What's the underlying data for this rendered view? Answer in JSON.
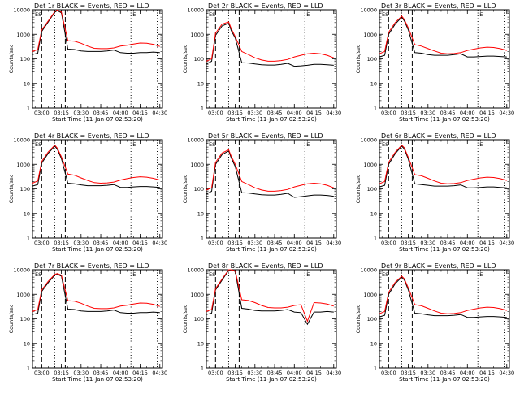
{
  "chart_data": [
    {
      "type": "line",
      "title": "Det 1r BLACK = Events, RED = LLD",
      "xlabel": "Start Time (11-Jan-07 02:53:20)",
      "ylabel": "Counts/sec",
      "yscale": "log",
      "ylim": [
        1,
        10000
      ],
      "x_ticks": [
        "03:00",
        "03:15",
        "03:30",
        "03:45",
        "04:00",
        "04:15",
        "04:30"
      ],
      "y_ticks": [
        "1",
        "10",
        "100",
        "1000",
        "10000"
      ],
      "grid": false,
      "corner_labels": [
        "ES",
        "E"
      ],
      "colors": {
        "events": "#000000",
        "lld": "#ff0000"
      },
      "x": [
        "02:53",
        "02:55",
        "02:57",
        "03:00",
        "03:05",
        "03:10",
        "03:12",
        "03:15",
        "03:20",
        "03:25",
        "03:30",
        "03:35",
        "03:40",
        "03:45",
        "03:50",
        "03:55",
        "04:00",
        "04:05",
        "04:10",
        "04:15",
        "04:20",
        "04:25",
        "04:30"
      ],
      "series": [
        {
          "values": [
            150,
            160,
            170,
            1300,
            3200,
            8000,
            9200,
            7500,
            250,
            240,
            210,
            200,
            200,
            200,
            210,
            230,
            180,
            170,
            170,
            180,
            180,
            190,
            180
          ]
        },
        {
          "values": [
            200,
            220,
            240,
            1500,
            3500,
            8500,
            9800,
            8000,
            550,
            520,
            430,
            330,
            270,
            260,
            260,
            280,
            330,
            360,
            400,
            440,
            430,
            390,
            320
          ]
        }
      ]
    },
    {
      "type": "line",
      "title": "Det 2r BLACK = Events, RED = LLD",
      "xlabel": "Start Time (11-Jan-07 02:53:20)",
      "ylabel": "Counts/sec",
      "yscale": "log",
      "ylim": [
        1,
        10000
      ],
      "x_ticks": [
        "03:00",
        "03:15",
        "03:30",
        "03:45",
        "04:00",
        "04:15",
        "04:30"
      ],
      "y_ticks": [
        "1",
        "10",
        "100",
        "1000",
        "10000"
      ],
      "grid": false,
      "corner_labels": [
        "ES",
        "E"
      ],
      "colors": {
        "events": "#000000",
        "lld": "#ff0000"
      },
      "x": [
        "02:53",
        "02:55",
        "02:57",
        "03:00",
        "03:05",
        "03:10",
        "03:12",
        "03:15",
        "03:20",
        "03:25",
        "03:30",
        "03:35",
        "03:40",
        "03:45",
        "03:50",
        "03:55",
        "04:00",
        "04:05",
        "04:10",
        "04:15",
        "04:20",
        "04:25",
        "04:30"
      ],
      "series": [
        {
          "values": [
            60,
            70,
            80,
            900,
            2200,
            2800,
            1400,
            700,
            70,
            68,
            62,
            58,
            56,
            56,
            60,
            66,
            50,
            52,
            55,
            60,
            60,
            58,
            55
          ]
        },
        {
          "values": [
            80,
            90,
            100,
            1100,
            2600,
            3200,
            1700,
            800,
            200,
            150,
            110,
            90,
            80,
            80,
            85,
            95,
            120,
            140,
            160,
            170,
            160,
            140,
            110
          ]
        }
      ]
    },
    {
      "type": "line",
      "title": "Det 3r BLACK = Events, RED = LLD",
      "xlabel": "Start Time (11-Jan-07 02:53:20)",
      "ylabel": "Counts/sec",
      "yscale": "log",
      "ylim": [
        1,
        10000
      ],
      "x_ticks": [
        "03:00",
        "03:15",
        "03:30",
        "03:45",
        "04:00",
        "04:15",
        "04:30"
      ],
      "y_ticks": [
        "1",
        "10",
        "100",
        "1000",
        "10000"
      ],
      "grid": false,
      "corner_labels": [
        "ES",
        "E"
      ],
      "colors": {
        "events": "#000000",
        "lld": "#ff0000"
      },
      "x": [
        "02:53",
        "02:55",
        "02:57",
        "03:00",
        "03:05",
        "03:10",
        "03:12",
        "03:15",
        "03:20",
        "03:25",
        "03:30",
        "03:35",
        "03:40",
        "03:45",
        "03:50",
        "03:55",
        "04:00",
        "04:05",
        "04:10",
        "04:15",
        "04:20",
        "04:25",
        "04:30"
      ],
      "series": [
        {
          "values": [
            120,
            130,
            140,
            1000,
            2600,
            5000,
            3500,
            1500,
            180,
            170,
            150,
            140,
            140,
            140,
            150,
            160,
            120,
            120,
            125,
            130,
            130,
            125,
            120
          ]
        },
        {
          "values": [
            160,
            180,
            200,
            1200,
            3000,
            5500,
            4000,
            1800,
            380,
            330,
            260,
            210,
            170,
            160,
            165,
            180,
            220,
            250,
            280,
            300,
            290,
            260,
            220
          ]
        }
      ]
    },
    {
      "type": "line",
      "title": "Det 4r BLACK = Events, RED = LLD",
      "xlabel": "Start Time (11-Jan-07 02:53:20)",
      "ylabel": "Counts/sec",
      "yscale": "log",
      "ylim": [
        1,
        10000
      ],
      "x_ticks": [
        "03:00",
        "03:15",
        "03:30",
        "03:45",
        "04:00",
        "04:15",
        "04:30"
      ],
      "y_ticks": [
        "1",
        "10",
        "100",
        "1000",
        "10000"
      ],
      "grid": false,
      "corner_labels": [
        "ES",
        "E"
      ],
      "colors": {
        "events": "#000000",
        "lld": "#ff0000"
      },
      "x": [
        "02:53",
        "02:55",
        "02:57",
        "03:00",
        "03:05",
        "03:10",
        "03:12",
        "03:15",
        "03:20",
        "03:25",
        "03:30",
        "03:35",
        "03:40",
        "03:45",
        "03:50",
        "03:55",
        "04:00",
        "04:05",
        "04:10",
        "04:15",
        "04:20",
        "04:25",
        "04:30"
      ],
      "series": [
        {
          "values": [
            130,
            140,
            150,
            1100,
            2800,
            5500,
            4000,
            1700,
            170,
            160,
            145,
            135,
            135,
            135,
            140,
            150,
            115,
            115,
            120,
            125,
            125,
            120,
            115
          ]
        },
        {
          "values": [
            170,
            190,
            210,
            1300,
            3200,
            6000,
            4500,
            2000,
            400,
            360,
            280,
            220,
            180,
            170,
            175,
            190,
            230,
            260,
            290,
            310,
            300,
            270,
            230
          ]
        }
      ]
    },
    {
      "type": "line",
      "title": "Det 5r BLACK = Events, RED = LLD",
      "xlabel": "Start Time (11-Jan-07 02:53:20)",
      "ylabel": "Counts/sec",
      "yscale": "log",
      "ylim": [
        1,
        10000
      ],
      "x_ticks": [
        "03:00",
        "03:15",
        "03:30",
        "03:45",
        "04:00",
        "04:15",
        "04:30"
      ],
      "y_ticks": [
        "1",
        "10",
        "100",
        "1000",
        "10000"
      ],
      "grid": false,
      "corner_labels": [
        "ES",
        "E"
      ],
      "colors": {
        "events": "#000000",
        "lld": "#ff0000"
      },
      "x": [
        "02:53",
        "02:55",
        "02:57",
        "03:00",
        "03:05",
        "03:10",
        "03:12",
        "03:15",
        "03:20",
        "03:25",
        "03:30",
        "03:35",
        "03:40",
        "03:45",
        "03:50",
        "03:55",
        "04:00",
        "04:05",
        "04:10",
        "04:15",
        "04:20",
        "04:25",
        "04:30"
      ],
      "series": [
        {
          "values": [
            60,
            70,
            80,
            1000,
            2500,
            3500,
            1800,
            800,
            70,
            68,
            62,
            58,
            56,
            56,
            60,
            66,
            45,
            48,
            52,
            56,
            56,
            54,
            50
          ]
        },
        {
          "values": [
            90,
            100,
            110,
            1200,
            2900,
            3900,
            2100,
            1000,
            200,
            150,
            110,
            90,
            80,
            80,
            85,
            95,
            120,
            140,
            160,
            170,
            160,
            140,
            110
          ]
        }
      ]
    },
    {
      "type": "line",
      "title": "Det 6r BLACK = Events, RED = LLD",
      "xlabel": "Start Time (11-Jan-07 02:53:20)",
      "ylabel": "Counts/sec",
      "yscale": "log",
      "ylim": [
        1,
        10000
      ],
      "x_ticks": [
        "03:00",
        "03:15",
        "03:30",
        "03:45",
        "04:00",
        "04:15",
        "04:30"
      ],
      "y_ticks": [
        "1",
        "10",
        "100",
        "1000",
        "10000"
      ],
      "grid": false,
      "corner_labels": [
        "ES",
        "E"
      ],
      "colors": {
        "events": "#000000",
        "lld": "#ff0000"
      },
      "x": [
        "02:53",
        "02:55",
        "02:57",
        "03:00",
        "03:05",
        "03:10",
        "03:12",
        "03:15",
        "03:20",
        "03:25",
        "03:30",
        "03:35",
        "03:40",
        "03:45",
        "03:50",
        "03:55",
        "04:00",
        "04:05",
        "04:10",
        "04:15",
        "04:20",
        "04:25",
        "04:30"
      ],
      "series": [
        {
          "values": [
            120,
            130,
            140,
            1000,
            2700,
            5500,
            4200,
            1600,
            160,
            150,
            140,
            130,
            130,
            130,
            135,
            145,
            110,
            110,
            115,
            120,
            120,
            115,
            110
          ]
        },
        {
          "values": [
            160,
            180,
            200,
            1200,
            3100,
            6000,
            4700,
            1900,
            380,
            340,
            270,
            210,
            170,
            160,
            165,
            180,
            220,
            250,
            280,
            300,
            290,
            260,
            220
          ]
        }
      ]
    },
    {
      "type": "line",
      "title": "Det 7r BLACK = Events, RED = LLD",
      "xlabel": "Start Time (11-Jan-07 02:53:20)",
      "ylabel": "Counts/sec",
      "yscale": "log",
      "ylim": [
        1,
        10000
      ],
      "x_ticks": [
        "03:00",
        "03:15",
        "03:30",
        "03:45",
        "04:00",
        "04:15",
        "04:30"
      ],
      "y_ticks": [
        "1",
        "10",
        "100",
        "1000",
        "10000"
      ],
      "grid": false,
      "corner_labels": [
        "ES",
        "E"
      ],
      "colors": {
        "events": "#000000",
        "lld": "#ff0000"
      },
      "x": [
        "02:53",
        "02:55",
        "02:57",
        "03:00",
        "03:05",
        "03:10",
        "03:12",
        "03:15",
        "03:20",
        "03:25",
        "03:30",
        "03:35",
        "03:40",
        "03:45",
        "03:50",
        "03:55",
        "04:00",
        "04:05",
        "04:10",
        "04:15",
        "04:20",
        "04:25",
        "04:30"
      ],
      "series": [
        {
          "values": [
            150,
            160,
            170,
            1300,
            3000,
            6000,
            6500,
            5500,
            250,
            240,
            210,
            200,
            200,
            200,
            210,
            230,
            180,
            170,
            170,
            180,
            180,
            190,
            180
          ]
        },
        {
          "values": [
            200,
            220,
            240,
            1500,
            3400,
            6500,
            7000,
            6000,
            550,
            520,
            430,
            330,
            270,
            260,
            260,
            280,
            330,
            360,
            400,
            440,
            430,
            390,
            320
          ]
        }
      ]
    },
    {
      "type": "line",
      "title": "Det 8r BLACK = Events, RED = LLD",
      "xlabel": "Start Time (11-Jan-07 02:53:20)",
      "ylabel": "Counts/sec",
      "yscale": "log",
      "ylim": [
        1,
        10000
      ],
      "x_ticks": [
        "03:00",
        "03:15",
        "03:30",
        "03:45",
        "04:00",
        "04:15",
        "04:30"
      ],
      "y_ticks": [
        "1",
        "10",
        "100",
        "1000",
        "10000"
      ],
      "grid": false,
      "corner_labels": [
        "ES",
        "E"
      ],
      "colors": {
        "events": "#000000",
        "lld": "#ff0000"
      },
      "x": [
        "02:53",
        "02:55",
        "02:57",
        "03:00",
        "03:05",
        "03:10",
        "03:12",
        "03:15",
        "03:20",
        "03:25",
        "03:30",
        "03:35",
        "03:40",
        "03:45",
        "03:50",
        "03:55",
        "04:00",
        "04:05",
        "04:10",
        "04:15",
        "04:20",
        "04:25",
        "04:30"
      ],
      "series": [
        {
          "values": [
            150,
            160,
            170,
            1500,
            3800,
            9500,
            9800,
            8500,
            270,
            250,
            220,
            210,
            210,
            210,
            220,
            240,
            190,
            180,
            60,
            190,
            190,
            200,
            190
          ]
        },
        {
          "values": [
            200,
            220,
            240,
            1700,
            4200,
            10000,
            10000,
            9000,
            600,
            560,
            460,
            350,
            290,
            280,
            280,
            300,
            350,
            380,
            80,
            460,
            440,
            400,
            330
          ]
        }
      ]
    },
    {
      "type": "line",
      "title": "Det 9r BLACK = Events, RED = LLD",
      "xlabel": "Start Time (11-Jan-07 02:53:20)",
      "ylabel": "Counts/sec",
      "yscale": "log",
      "ylim": [
        1,
        10000
      ],
      "x_ticks": [
        "03:00",
        "03:15",
        "03:30",
        "03:45",
        "04:00",
        "04:15",
        "04:30"
      ],
      "y_ticks": [
        "1",
        "10",
        "100",
        "1000",
        "10000"
      ],
      "grid": false,
      "corner_labels": [
        "ES",
        "E"
      ],
      "colors": {
        "events": "#000000",
        "lld": "#ff0000"
      },
      "x": [
        "02:53",
        "02:55",
        "02:57",
        "03:00",
        "03:05",
        "03:10",
        "03:12",
        "03:15",
        "03:20",
        "03:25",
        "03:30",
        "03:35",
        "03:40",
        "03:45",
        "03:50",
        "03:55",
        "04:00",
        "04:05",
        "04:10",
        "04:15",
        "04:20",
        "04:25",
        "04:30"
      ],
      "series": [
        {
          "values": [
            120,
            130,
            140,
            1000,
            2700,
            5000,
            3800,
            1500,
            170,
            160,
            145,
            135,
            135,
            135,
            140,
            150,
            115,
            115,
            120,
            125,
            125,
            120,
            115
          ]
        },
        {
          "values": [
            160,
            180,
            200,
            1200,
            3100,
            5500,
            4300,
            1800,
            380,
            340,
            270,
            210,
            170,
            160,
            165,
            180,
            220,
            250,
            280,
            300,
            290,
            260,
            220
          ]
        }
      ]
    }
  ]
}
